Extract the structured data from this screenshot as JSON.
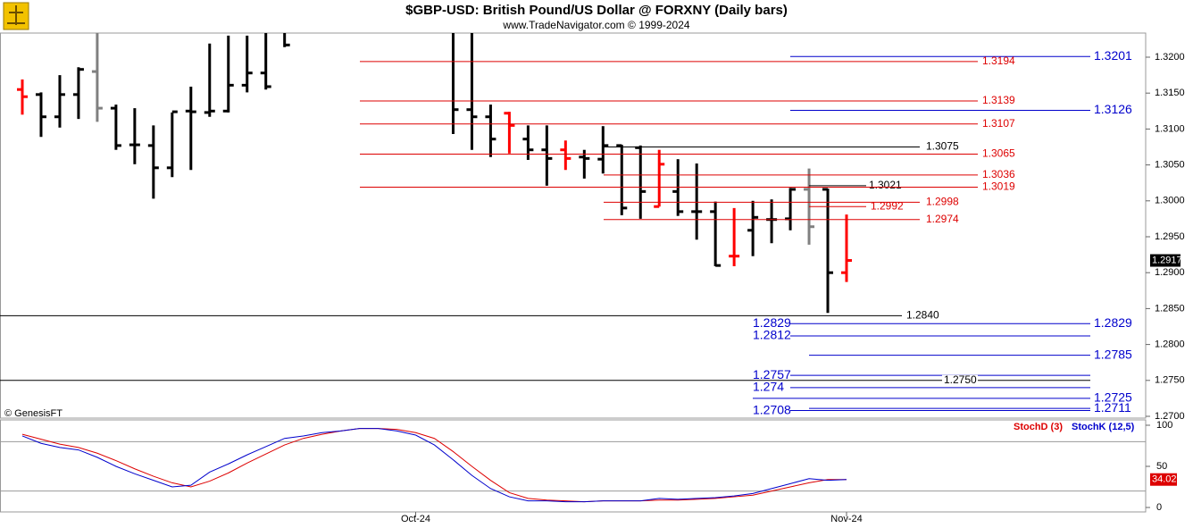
{
  "chart_data": [
    {
      "type": "ohlc",
      "title": "$GBP-USD:  British Pound/US Dollar @ FORXNY  (Daily bars)",
      "subtitle": "www.TradeNavigator.com © 1999-2024",
      "source_note": "© GenesisFT",
      "categories": [
        null,
        null,
        null,
        null,
        null,
        null,
        null,
        null,
        null,
        null,
        null,
        null,
        null,
        null,
        null,
        null,
        null,
        null,
        null,
        null,
        null,
        "Oct-24",
        null,
        null,
        null,
        null,
        null,
        null,
        null,
        null,
        null,
        null,
        null,
        null,
        null,
        null,
        null,
        null,
        null,
        null,
        null,
        null,
        null,
        null,
        "Nov-24"
      ],
      "open": [
        1.3155,
        1.3148,
        1.3117,
        1.3148,
        1.318,
        1.3129,
        1.3078,
        1.3077,
        1.3046,
        1.3125,
        1.3123,
        1.3125,
        1.3161,
        1.3178,
        1.324,
        null,
        null,
        null,
        null,
        null,
        null,
        null,
        null,
        1.324,
        1.3127,
        1.3117,
        1.3122,
        1.3086,
        1.3071,
        1.3071,
        1.3061,
        1.3058,
        1.3077,
        1.3074,
        1.2992,
        1.3013,
        1.2985,
        1.2985,
        1.2923,
        1.2959,
        1.2974,
        1.2975,
        1.3016,
        1.3016,
        1.29
      ],
      "high": [
        1.3169,
        1.3151,
        1.3175,
        1.3186,
        1.324,
        1.3134,
        1.3129,
        1.3105,
        1.3123,
        1.3159,
        1.3219,
        1.323,
        1.323,
        1.325,
        1.326,
        null,
        null,
        null,
        null,
        null,
        null,
        null,
        null,
        1.326,
        1.325,
        1.3134,
        1.3124,
        1.3105,
        1.3105,
        1.3084,
        1.3071,
        1.3104,
        1.3078,
        1.3077,
        1.3071,
        1.3058,
        1.3052,
        1.2999,
        1.299,
        1.3,
        1.3002,
        1.3018,
        1.3045,
        1.3017,
        1.2981
      ],
      "low": [
        1.312,
        1.3089,
        1.3102,
        1.3114,
        1.311,
        1.3071,
        1.3051,
        1.3003,
        1.3033,
        1.3043,
        1.3117,
        1.3123,
        1.3151,
        1.3155,
        1.3214,
        null,
        null,
        null,
        null,
        null,
        null,
        null,
        null,
        1.3093,
        1.3071,
        1.3061,
        1.3066,
        1.3057,
        1.3021,
        1.3043,
        1.3031,
        1.3038,
        1.298,
        1.2975,
        1.2992,
        1.2979,
        1.2946,
        1.2909,
        1.2909,
        1.2923,
        1.2941,
        1.2959,
        1.2939,
        1.2844,
        1.2887
      ],
      "close": [
        1.3145,
        1.3117,
        1.3148,
        1.3183,
        1.3129,
        1.3077,
        1.3078,
        1.3046,
        1.3124,
        1.3124,
        1.3125,
        1.3161,
        1.3178,
        1.3159,
        1.3217,
        null,
        null,
        null,
        null,
        null,
        null,
        null,
        null,
        1.3127,
        1.3117,
        1.3086,
        1.3105,
        1.3071,
        1.3059,
        1.3059,
        1.3059,
        1.3077,
        1.299,
        1.3013,
        1.3051,
        1.2985,
        1.2985,
        1.291,
        1.2923,
        1.2977,
        1.2974,
        1.3016,
        1.2964,
        1.29,
        1.2917
      ],
      "colors": [
        "#ff0000",
        "#000000",
        "#000000",
        "#000000",
        "#808080",
        "#000000",
        "#000000",
        "#000000",
        "#000000",
        "#000000",
        "#000000",
        "#000000",
        "#000000",
        "#000000",
        "#000000",
        null,
        null,
        null,
        null,
        null,
        null,
        null,
        null,
        "#000000",
        "#000000",
        "#000000",
        "#ff0000",
        "#000000",
        "#000000",
        "#ff0000",
        "#000000",
        "#000000",
        "#000000",
        "#000000",
        "#ff0000",
        "#000000",
        "#000000",
        "#000000",
        "#ff0000",
        "#000000",
        "#000000",
        "#000000",
        "#808080",
        "#000000",
        "#ff0000"
      ],
      "ylim": [
        1.26975,
        1.32336
      ],
      "yticks": [
        {
          "value": 1.27,
          "label": "1.2700"
        },
        {
          "value": 1.275,
          "label": "1.2750"
        },
        {
          "value": 1.28,
          "label": "1.2800"
        },
        {
          "value": 1.285,
          "label": "1.2850"
        },
        {
          "value": 1.29,
          "label": "1.2900"
        },
        {
          "value": 1.295,
          "label": "1.2950"
        },
        {
          "value": 1.3,
          "label": "1.3000"
        },
        {
          "value": 1.305,
          "label": "1.3050"
        },
        {
          "value": 1.31,
          "label": "1.3100"
        },
        {
          "value": 1.315,
          "label": "1.3150"
        },
        {
          "value": 1.32,
          "label": "1.3200"
        }
      ],
      "levels": [
        {
          "price": 1.3201,
          "color": "#0000cc"
        },
        {
          "price": 1.3194,
          "color": "#dd0000"
        },
        {
          "price": 1.3139,
          "color": "#dd0000"
        },
        {
          "price": 1.3126,
          "color": "#0000cc"
        },
        {
          "price": 1.3107,
          "color": "#dd0000"
        },
        {
          "price": 1.3075,
          "color": "#000000"
        },
        {
          "price": 1.3065,
          "color": "#dd0000"
        },
        {
          "price": 1.3036,
          "color": "#dd0000"
        },
        {
          "price": 1.3021,
          "color": "#000000"
        },
        {
          "price": 1.3019,
          "color": "#dd0000"
        },
        {
          "price": 1.2998,
          "color": "#dd0000"
        },
        {
          "price": 1.2992,
          "color": "#dd0000"
        },
        {
          "price": 1.2974,
          "color": "#dd0000"
        },
        {
          "price": {
            "value": 1.284,
            "label": "1.2840"
          },
          "color": "#000000"
        },
        {
          "price": 1.2829,
          "color": "#0000cc"
        },
        {
          "price": 1.2812,
          "color": "#0000cc"
        },
        {
          "price": 1.2785,
          "color": "#0000cc"
        },
        {
          "price": 1.2757,
          "color": "#0000cc"
        },
        {
          "price": {
            "value": 1.275,
            "label": "1.2750"
          },
          "color": "#000000"
        },
        {
          "price": 1.274,
          "color": "#0000cc"
        },
        {
          "price": 1.2725,
          "color": "#0000cc"
        },
        {
          "price": 1.2711,
          "color": "#0000cc"
        },
        {
          "price": 1.2708,
          "color": "#0000cc"
        }
      ]
    },
    {
      "type": "line",
      "series": [
        {
          "name": "StochD (3)",
          "color": "#dd0000",
          "values": [
            89,
            83,
            77,
            73,
            66,
            57,
            47,
            38,
            30,
            25,
            32,
            42,
            54,
            65,
            76,
            84,
            89,
            93,
            96,
            96,
            95,
            91,
            84,
            68,
            50,
            33,
            18,
            11,
            9,
            8,
            7,
            8,
            8,
            8,
            9,
            9,
            10,
            11,
            13,
            15,
            20,
            25,
            30,
            34,
            34.02
          ]
        },
        {
          "name": "StochK (12,5)",
          "color": "#0000cc",
          "values": [
            87,
            78,
            73,
            70,
            61,
            50,
            41,
            33,
            25,
            27,
            43,
            53,
            64,
            74,
            84,
            87,
            91,
            93,
            96,
            96,
            93,
            88,
            76,
            58,
            39,
            23,
            13,
            8,
            8,
            7,
            7,
            8,
            8,
            8,
            11,
            10,
            11,
            12,
            14,
            17,
            23,
            29,
            35,
            33,
            34
          ]
        }
      ],
      "ylim": [
        -5.4,
        106.5
      ],
      "yticks": [
        0,
        50,
        100
      ],
      "reference_lines": [
        20,
        80
      ]
    }
  ]
}
